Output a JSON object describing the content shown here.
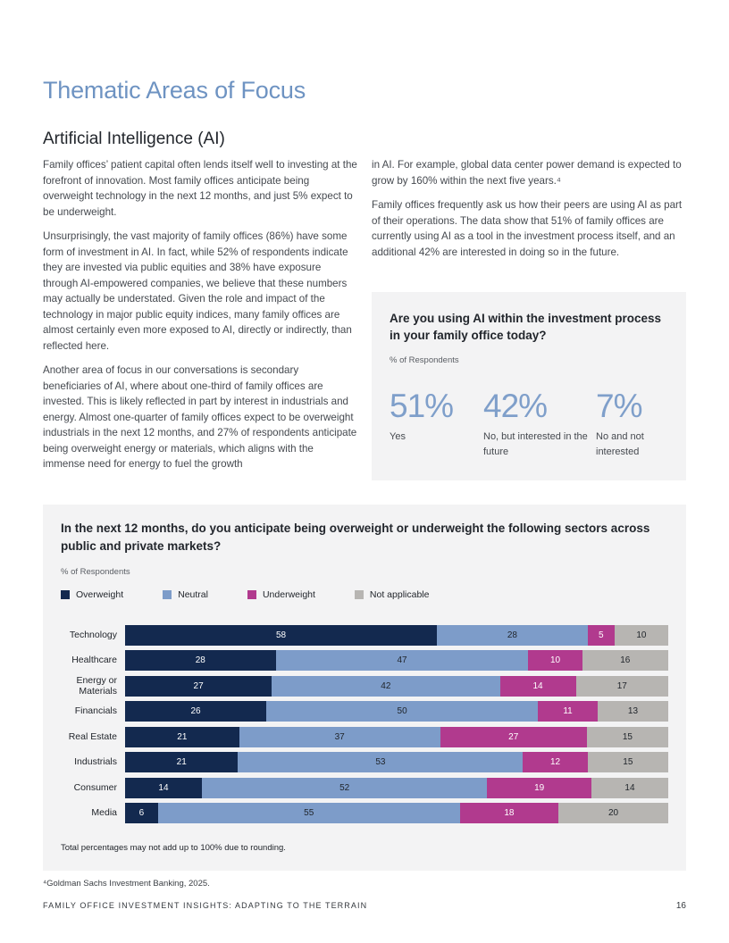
{
  "page": {
    "title": "Thematic Areas of Focus",
    "section_heading": "Artificial Intelligence (AI)",
    "footnote": "⁴Goldman Sachs Investment Banking, 2025.",
    "footer": {
      "text": "FAMILY OFFICE INVESTMENT INSIGHTS: ADAPTING TO THE TERRAIN",
      "page_number": "16"
    },
    "accent_color": "#6e93c2"
  },
  "body": {
    "left_paragraphs": [
      "Family offices’ patient capital often lends itself well to investing at the forefront of innovation. Most family offices anticipate being overweight technology in the next 12 months, and just 5% expect to be underweight.",
      "Unsurprisingly, the vast majority of family offices (86%) have some form of investment in AI. In fact, while 52% of respondents indicate they are invested via public equities and 38% have exposure through AI-empowered companies, we believe that these numbers may actually be understated. Given the role and impact of the technology in major public equity indices, many family offices are almost certainly even more exposed to AI, directly or indirectly, than reflected here.",
      "Another area of focus in our conversations is secondary beneficiaries of AI, where about one-third of family offices are invested. This is likely reflected in part by interest in industrials and energy. Almost one-quarter of family offices expect to be overweight industrials in the next 12 months, and 27% of respondents anticipate being overweight energy or materials, which aligns with the immense need for energy to fuel the growth"
    ],
    "right_paragraphs": [
      "in AI. For example, global data center power demand is expected to grow by 160% within the next five years.⁴",
      "Family offices frequently ask us how their peers are using AI as part of their operations. The data show that 51% of family offices are currently using AI as a tool in the investment process itself, and an additional 42% are interested in doing so in the future."
    ]
  },
  "ai_usage_callout": {
    "title": "Are you using AI within the investment process in your family office today?",
    "subtitle": "% of Respondents",
    "value_color": "#7f9fca",
    "stats": [
      {
        "value": "51%",
        "label": "Yes"
      },
      {
        "value": "42%",
        "label": "No, but interested in the future"
      },
      {
        "value": "7%",
        "label": "No and not interested"
      }
    ]
  },
  "chart_data": {
    "type": "bar",
    "orientation": "horizontal-stacked",
    "title": "In the next 12 months, do you anticipate being overweight or underweight the following sectors across public and private markets?",
    "subtitle": "% of Respondents",
    "note": "Total percentages may not add up to 100% due to rounding.",
    "xlim": [
      0,
      100
    ],
    "legend_position": "top",
    "categories": [
      "Technology",
      "Healthcare",
      "Energy or Materials",
      "Financials",
      "Real Estate",
      "Industrials",
      "Consumer",
      "Media"
    ],
    "series": [
      {
        "name": "Overweight",
        "color": "#13294f",
        "label_color": "#ffffff",
        "values": [
          58,
          28,
          27,
          26,
          21,
          21,
          14,
          6
        ]
      },
      {
        "name": "Neutral",
        "color": "#7d9cc9",
        "label_color": "#1f242a",
        "values": [
          28,
          47,
          42,
          50,
          37,
          53,
          52,
          55
        ]
      },
      {
        "name": "Underweight",
        "color": "#b13a8e",
        "label_color": "#ffffff",
        "values": [
          5,
          10,
          14,
          11,
          27,
          12,
          19,
          18
        ]
      },
      {
        "name": "Not applicable",
        "color": "#b7b5b2",
        "label_color": "#1f242a",
        "values": [
          10,
          16,
          17,
          13,
          15,
          15,
          14,
          20
        ]
      }
    ]
  }
}
